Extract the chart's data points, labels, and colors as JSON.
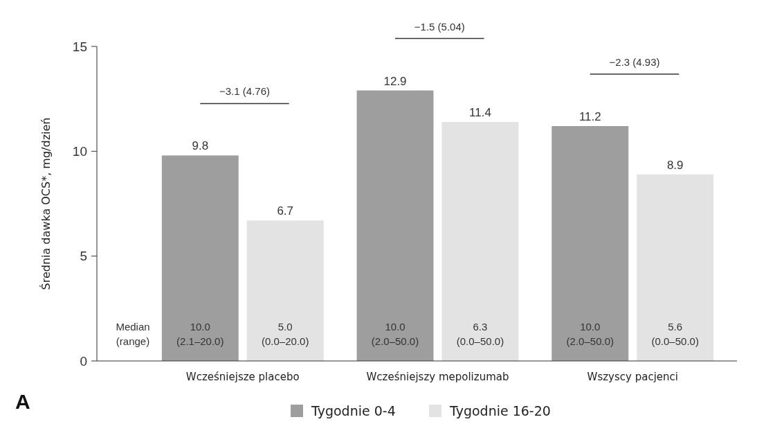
{
  "chart_data": {
    "type": "bar",
    "ylabel": "Średnia dawka OCS*, mg/dzień",
    "categories": [
      "Wcześniejsze placebo",
      "Wcześniejszy mepolizumab",
      "Wszyscy pacjenci"
    ],
    "series": [
      {
        "name": "Tygodnie 0-4",
        "color": "#9e9e9e",
        "values": [
          9.8,
          12.9,
          11.2
        ]
      },
      {
        "name": "Tygodnie 16-20",
        "color": "#e3e3e3",
        "values": [
          6.7,
          11.4,
          8.9
        ]
      }
    ],
    "ylim": [
      0,
      15
    ],
    "yticks": [
      0,
      5,
      10,
      15
    ],
    "grid": false,
    "legend": "bottom",
    "data_labels": true,
    "annotations": [
      "−3.1 (4.76)",
      "−1.5 (5.04)",
      "−2.3 (4.93)",
      "Median (range)",
      "10.0 (2.1–20.0)",
      "5.0 (0.0–20.0)",
      "10.0 (2.0–50.0)",
      "6.3 (0.0–50.0)",
      "10.0 (2.0–50.0)",
      "5.6 (0.0–50.0)",
      "A"
    ]
  }
}
